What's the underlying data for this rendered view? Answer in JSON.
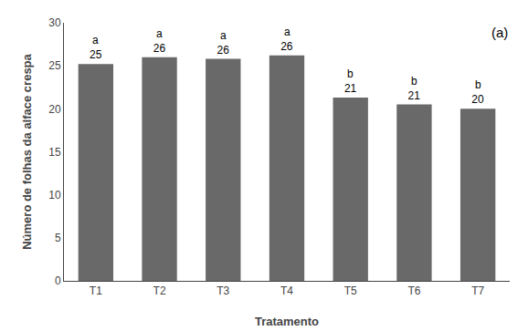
{
  "chart_data": {
    "type": "bar",
    "categories": [
      "T1",
      "T2",
      "T3",
      "T4",
      "T5",
      "T6",
      "T7"
    ],
    "values": [
      25.2,
      26.0,
      25.8,
      26.2,
      21.3,
      20.5,
      20.0
    ],
    "value_labels": [
      "25",
      "26",
      "26",
      "26",
      "21",
      "21",
      "20"
    ],
    "data_labels": true,
    "color": "#696969",
    "xlabel": "Tratamento",
    "ylabel": "Número de folhas da alface crespa",
    "ylim": [
      0,
      30
    ],
    "yticks": [
      0,
      5,
      10,
      15,
      20,
      25,
      30
    ],
    "grid": false,
    "annotations": [
      {
        "text": "(a)"
      },
      {
        "category": "T1",
        "text": "a"
      },
      {
        "category": "T2",
        "text": "a"
      },
      {
        "category": "T3",
        "text": "a"
      },
      {
        "category": "T4",
        "text": "a"
      },
      {
        "category": "T5",
        "text": "b"
      },
      {
        "category": "T6",
        "text": "b"
      },
      {
        "category": "T7",
        "text": "b"
      }
    ]
  }
}
